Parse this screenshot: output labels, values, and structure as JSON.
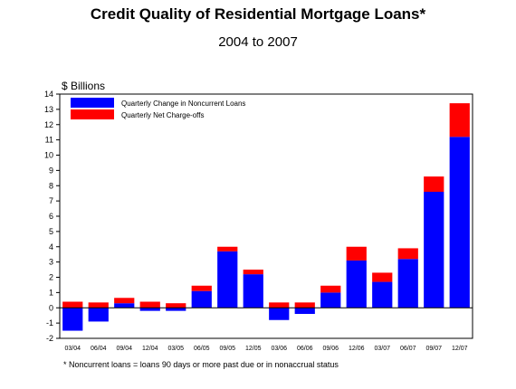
{
  "chart_data": {
    "type": "bar",
    "stacked": true,
    "title": "Credit Quality of Residential Mortgage Loans*",
    "subtitle": "2004 to 2007",
    "ylabel": "$ Billions",
    "footnote": "* Noncurrent loans = loans 90 days or more past due or in nonaccrual status",
    "ylim": [
      -2,
      14
    ],
    "ytick_step": 1,
    "grid": false,
    "legend_position": "top-left",
    "categories": [
      "03/04",
      "06/04",
      "09/04",
      "12/04",
      "03/05",
      "06/05",
      "09/05",
      "12/05",
      "03/06",
      "06/06",
      "09/06",
      "12/06",
      "03/07",
      "06/07",
      "09/07",
      "12/07"
    ],
    "series": [
      {
        "name": "Quarterly Change in Noncurrent Loans",
        "color": "#0000ff",
        "values": [
          -1.5,
          -0.9,
          0.3,
          -0.2,
          -0.2,
          1.1,
          3.7,
          2.2,
          -0.8,
          -0.4,
          1.0,
          3.1,
          1.7,
          3.2,
          7.6,
          11.2
        ]
      },
      {
        "name": "Quarterly Net Charge-offs",
        "color": "#ff0000",
        "values": [
          0.4,
          0.35,
          0.35,
          0.4,
          0.3,
          0.35,
          0.3,
          0.3,
          0.35,
          0.35,
          0.45,
          0.9,
          0.6,
          0.7,
          1.0,
          2.2
        ]
      }
    ]
  }
}
